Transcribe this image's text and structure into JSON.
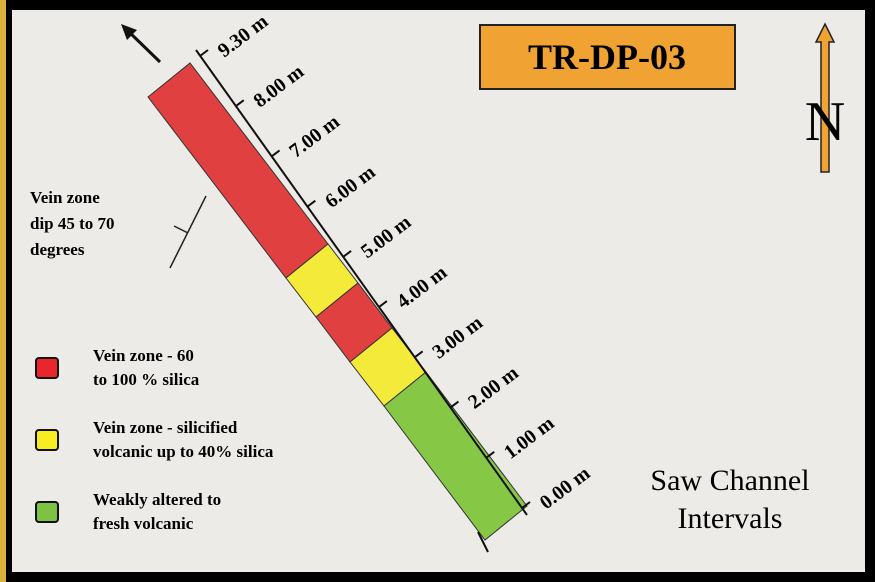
{
  "header": {
    "title": "TR-DP-03",
    "north": "N"
  },
  "note": {
    "lines": [
      "Vein zone",
      " dip 45 to 70",
      "degrees"
    ]
  },
  "scale": {
    "labels": [
      "9.30 m",
      "8.00 m",
      "7.00 m",
      "6.00 m",
      "5.00 m",
      "4.00 m",
      "3.00 m",
      "2.00 m",
      "1.00 m",
      "0.00 m"
    ]
  },
  "legend": [
    {
      "lines": [
        "Vein zone - 60",
        "to 100 % silica"
      ],
      "color": "#e8262c"
    },
    {
      "lines": [
        "Vein zone - silicified",
        "volcanic up to 40% silica"
      ],
      "color": "#f6ee22"
    },
    {
      "lines": [
        "Weakly altered to",
        "fresh volcanic"
      ],
      "color": "#7dc242"
    }
  ],
  "caption": {
    "lines": [
      "Saw Channel",
      "Intervals"
    ]
  }
}
